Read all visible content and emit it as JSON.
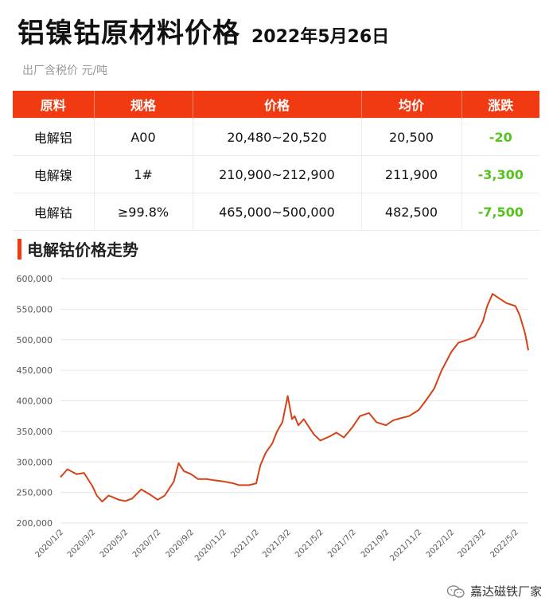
{
  "header": {
    "title": "铝镍钴原材料价格",
    "date": "2022年5月26日",
    "subtitle": "出厂含税价 元/吨"
  },
  "table": {
    "columns": [
      "原料",
      "规格",
      "价格",
      "均价",
      "涨跌"
    ],
    "rows": [
      [
        "电解铝",
        "A00",
        "20,480~20,520",
        "20,500",
        "-20"
      ],
      [
        "电解镍",
        "1#",
        "210,900~212,900",
        "211,900",
        "-3,300"
      ],
      [
        "电解钴",
        "≥99.8%",
        "465,000~500,000",
        "482,500",
        "-7,500"
      ]
    ]
  },
  "colors": {
    "accent": "#f23a12",
    "line": "#d44217",
    "down": "#54c41c"
  },
  "watermark": {
    "text": "嘉达磁铁厂家",
    "icon": "wechat-icon"
  },
  "chart_data": {
    "type": "line",
    "title": "电解钴价格走势",
    "ylim": [
      200000,
      600000
    ],
    "yticks": [
      "200,000",
      "250,000",
      "300,000",
      "350,000",
      "400,000",
      "450,000",
      "500,000",
      "550,000",
      "600,000"
    ],
    "xticks": [
      "2020/1/2",
      "2020/3/2",
      "2020/5/2",
      "2020/7/2",
      "2020/9/2",
      "2020/11/2",
      "2021/1/2",
      "2021/3/2",
      "2021/5/2",
      "2021/7/2",
      "2021/9/2",
      "2021/11/2",
      "2022/1/2",
      "2022/3/2",
      "2022/5/2"
    ],
    "grid": true,
    "series": [
      {
        "x": [
          "2020/1/2",
          "2020/1/15",
          "2020/2/1",
          "2020/2/15",
          "2020/3/2",
          "2020/3/10",
          "2020/3/20",
          "2020/4/1",
          "2020/4/10",
          "2020/4/20",
          "2020/5/2",
          "2020/5/15",
          "2020/6/1",
          "2020/6/15",
          "2020/7/2",
          "2020/7/15",
          "2020/8/1",
          "2020/8/10",
          "2020/8/20",
          "2020/9/2",
          "2020/9/15",
          "2020/10/1",
          "2020/10/15",
          "2020/11/2",
          "2020/11/20",
          "2020/12/1",
          "2020/12/20",
          "2021/1/2",
          "2021/1/10",
          "2021/1/20",
          "2021/2/1",
          "2021/2/10",
          "2021/2/20",
          "2021/3/2",
          "2021/3/10",
          "2021/3/15",
          "2021/3/22",
          "2021/4/1",
          "2021/4/10",
          "2021/4/20",
          "2021/5/2",
          "2021/5/20",
          "2021/6/1",
          "2021/6/15",
          "2021/7/2",
          "2021/7/15",
          "2021/8/1",
          "2021/8/15",
          "2021/9/2",
          "2021/9/15",
          "2021/10/1",
          "2021/10/15",
          "2021/11/2",
          "2021/11/15",
          "2021/12/1",
          "2021/12/15",
          "2022/1/2",
          "2022/1/15",
          "2022/2/1",
          "2022/2/15",
          "2022/3/2",
          "2022/3/10",
          "2022/3/20",
          "2022/4/1",
          "2022/4/15",
          "2022/5/2",
          "2022/5/10",
          "2022/5/20",
          "2022/5/26"
        ],
        "values": [
          275000,
          288000,
          280000,
          282000,
          260000,
          245000,
          235000,
          245000,
          242000,
          238000,
          236000,
          240000,
          255000,
          248000,
          238000,
          245000,
          268000,
          298000,
          285000,
          280000,
          272000,
          272000,
          270000,
          268000,
          265000,
          262000,
          262000,
          265000,
          295000,
          315000,
          330000,
          350000,
          365000,
          408000,
          370000,
          375000,
          360000,
          370000,
          358000,
          345000,
          335000,
          342000,
          348000,
          340000,
          358000,
          375000,
          380000,
          365000,
          360000,
          368000,
          372000,
          375000,
          385000,
          400000,
          420000,
          450000,
          480000,
          495000,
          500000,
          505000,
          530000,
          555000,
          575000,
          568000,
          560000,
          555000,
          540000,
          510000,
          482500
        ]
      }
    ]
  }
}
